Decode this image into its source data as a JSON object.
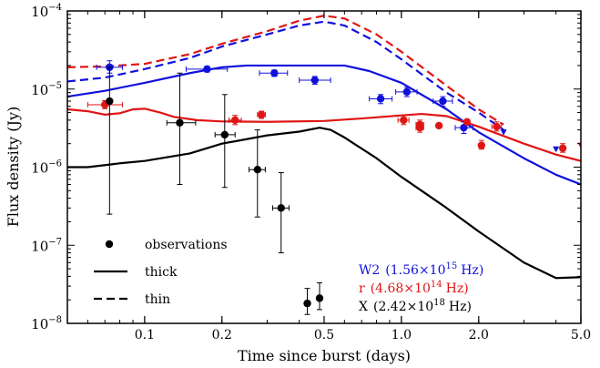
{
  "chart_data": {
    "type": "scatter",
    "title": "",
    "xlabel": "Time since burst (days)",
    "ylabel": "Flux density (Jy)",
    "xscale": "log",
    "yscale": "log",
    "xlim": [
      0.05,
      5.0
    ],
    "ylim": [
      1e-08,
      0.0001
    ],
    "x_ticks": [
      {
        "value": 0.1,
        "label": "0.1"
      },
      {
        "value": 0.2,
        "label": "0.2"
      },
      {
        "value": 0.5,
        "label": "0.5"
      },
      {
        "value": 1.0,
        "label": "1.0"
      },
      {
        "value": 2.0,
        "label": "2.0"
      },
      {
        "value": 5.0,
        "label": "5.0"
      }
    ],
    "y_ticks": [
      {
        "value": 1e-08,
        "base": "10",
        "exp": "−8"
      },
      {
        "value": 1e-07,
        "base": "10",
        "exp": "−7"
      },
      {
        "value": 1e-06,
        "base": "10",
        "exp": "−6"
      },
      {
        "value": 1e-05,
        "base": "10",
        "exp": "−5"
      },
      {
        "value": 0.0001,
        "base": "10",
        "exp": "−4"
      }
    ],
    "legend": {
      "placement": "lower-left",
      "entries": [
        {
          "label": "observations",
          "style": "marker"
        },
        {
          "label": "thick",
          "style": "solid"
        },
        {
          "label": "thin",
          "style": "dashed"
        }
      ]
    },
    "band_labels": [
      {
        "band": "W2",
        "freq_mant": "1.56",
        "freq_exp": "15",
        "unit": "Hz",
        "color": "#1010dd"
      },
      {
        "band": "r",
        "freq_mant": "4.68",
        "freq_exp": "14",
        "unit": "Hz",
        "color": "#e01515"
      },
      {
        "band": "X",
        "freq_mant": "2.42",
        "freq_exp": "18",
        "unit": "Hz",
        "color": "#000000"
      }
    ],
    "series": [
      {
        "band": "W2",
        "color": "#1010dd",
        "points": [
          {
            "x": 0.073,
            "y": 1.9e-05,
            "xerr": [
              0.065,
              0.082
            ],
            "yerr": [
              1.6e-05,
              2.3e-05
            ]
          },
          {
            "x": 0.175,
            "y": 1.8e-05,
            "xerr": [
              0.145,
              0.21
            ],
            "yerr": [
              1.65e-05,
              1.95e-05
            ]
          },
          {
            "x": 0.32,
            "y": 1.6e-05,
            "xerr": [
              0.28,
              0.36
            ],
            "yerr": [
              1.45e-05,
              1.75e-05
            ]
          },
          {
            "x": 0.46,
            "y": 1.3e-05,
            "xerr": [
              0.4,
              0.53
            ],
            "yerr": [
              1.15e-05,
              1.45e-05
            ]
          },
          {
            "x": 0.83,
            "y": 7.5e-06,
            "xerr": [
              0.75,
              0.92
            ],
            "yerr": [
              6.5e-06,
              8.5e-06
            ]
          },
          {
            "x": 1.05,
            "y": 9.2e-06,
            "xerr": [
              0.95,
              1.15
            ],
            "yerr": [
              8e-06,
              1.05e-05
            ]
          },
          {
            "x": 1.45,
            "y": 7e-06,
            "xerr": [
              1.33,
              1.58
            ],
            "yerr": [
              6e-06,
              8e-06
            ]
          },
          {
            "x": 1.75,
            "y": 3.2e-06,
            "xerr": [
              1.62,
              1.9
            ],
            "yerr": [
              2.7e-06,
              3.8e-06
            ]
          }
        ],
        "upper_limits": [
          {
            "x": 2.5,
            "y": 2.8e-06
          },
          {
            "x": 4.0,
            "y": 1.7e-06
          }
        ],
        "model_thick": [
          {
            "x": 0.05,
            "y": 8e-06
          },
          {
            "x": 0.07,
            "y": 9.5e-06
          },
          {
            "x": 0.1,
            "y": 1.2e-05
          },
          {
            "x": 0.15,
            "y": 1.6e-05
          },
          {
            "x": 0.2,
            "y": 1.9e-05
          },
          {
            "x": 0.25,
            "y": 2e-05
          },
          {
            "x": 0.4,
            "y": 2e-05
          },
          {
            "x": 0.6,
            "y": 2e-05
          },
          {
            "x": 0.75,
            "y": 1.7e-05
          },
          {
            "x": 1.0,
            "y": 1.2e-05
          },
          {
            "x": 1.5,
            "y": 5.5e-06
          },
          {
            "x": 2.0,
            "y": 2.8e-06
          },
          {
            "x": 3.0,
            "y": 1.3e-06
          },
          {
            "x": 4.0,
            "y": 8e-07
          },
          {
            "x": 5.0,
            "y": 6e-07
          }
        ],
        "model_thin": [
          {
            "x": 0.05,
            "y": 1.25e-05
          },
          {
            "x": 0.07,
            "y": 1.4e-05
          },
          {
            "x": 0.1,
            "y": 1.8e-05
          },
          {
            "x": 0.15,
            "y": 2.5e-05
          },
          {
            "x": 0.2,
            "y": 3.5e-05
          },
          {
            "x": 0.3,
            "y": 5e-05
          },
          {
            "x": 0.4,
            "y": 6.5e-05
          },
          {
            "x": 0.5,
            "y": 7.3e-05
          },
          {
            "x": 0.6,
            "y": 6.5e-05
          },
          {
            "x": 0.8,
            "y": 4e-05
          },
          {
            "x": 1.0,
            "y": 2.4e-05
          },
          {
            "x": 1.5,
            "y": 9e-06
          },
          {
            "x": 2.0,
            "y": 5e-06
          },
          {
            "x": 2.5,
            "y": 3e-06
          }
        ]
      },
      {
        "band": "r",
        "color": "#e01515",
        "points": [
          {
            "x": 0.07,
            "y": 6.3e-06,
            "xerr": [
              0.06,
              0.082
            ],
            "yerr": [
              5.6e-06,
              7.1e-06
            ]
          },
          {
            "x": 0.225,
            "y": 4e-06,
            "xerr": [
              0.213,
              0.238
            ],
            "yerr": [
              3.5e-06,
              4.6e-06
            ]
          },
          {
            "x": 0.285,
            "y": 4.7e-06,
            "xerr": [
              0.275,
              0.295
            ],
            "yerr": [
              4.2e-06,
              5.2e-06
            ]
          },
          {
            "x": 1.02,
            "y": 4e-06,
            "xerr": [
              0.97,
              1.07
            ],
            "yerr": [
              3.5e-06,
              4.6e-06
            ]
          },
          {
            "x": 1.18,
            "y": 3.5e-06,
            "xerr": [
              1.14,
              1.22
            ],
            "yerr": [
              3e-06,
              4e-06
            ]
          },
          {
            "x": 1.18,
            "y": 3.2e-06,
            "xerr": [
              1.14,
              1.22
            ],
            "yerr": [
              2.8e-06,
              3.7e-06
            ]
          },
          {
            "x": 1.4,
            "y": 3.4e-06
          },
          {
            "x": 1.8,
            "y": 3.8e-06
          },
          {
            "x": 2.05,
            "y": 1.9e-06,
            "yerr": [
              1.7e-06,
              2.2e-06
            ]
          },
          {
            "x": 2.35,
            "y": 3.3e-06,
            "xerr": [
              2.25,
              2.45
            ],
            "yerr": [
              2.9e-06,
              3.8e-06
            ]
          },
          {
            "x": 4.25,
            "y": 1.75e-06,
            "yerr": [
              1.55e-06,
              2e-06
            ]
          }
        ],
        "upper_limits": [
          {
            "x": 5.0,
            "y": 1.9e-06
          }
        ],
        "model_thick": [
          {
            "x": 0.05,
            "y": 5.5e-06
          },
          {
            "x": 0.06,
            "y": 5.2e-06
          },
          {
            "x": 0.07,
            "y": 4.7e-06
          },
          {
            "x": 0.08,
            "y": 4.9e-06
          },
          {
            "x": 0.09,
            "y": 5.5e-06
          },
          {
            "x": 0.1,
            "y": 5.6e-06
          },
          {
            "x": 0.115,
            "y": 5e-06
          },
          {
            "x": 0.13,
            "y": 4.4e-06
          },
          {
            "x": 0.16,
            "y": 4e-06
          },
          {
            "x": 0.2,
            "y": 3.85e-06
          },
          {
            "x": 0.3,
            "y": 3.8e-06
          },
          {
            "x": 0.5,
            "y": 3.9e-06
          },
          {
            "x": 0.7,
            "y": 4.2e-06
          },
          {
            "x": 1.0,
            "y": 4.6e-06
          },
          {
            "x": 1.2,
            "y": 4.8e-06
          },
          {
            "x": 1.5,
            "y": 4.5e-06
          },
          {
            "x": 2.0,
            "y": 3.3e-06
          },
          {
            "x": 3.0,
            "y": 2e-06
          },
          {
            "x": 4.0,
            "y": 1.45e-06
          },
          {
            "x": 5.0,
            "y": 1.2e-06
          }
        ],
        "model_thin": [
          {
            "x": 0.05,
            "y": 1.9e-05
          },
          {
            "x": 0.07,
            "y": 1.95e-05
          },
          {
            "x": 0.1,
            "y": 2.1e-05
          },
          {
            "x": 0.15,
            "y": 2.8e-05
          },
          {
            "x": 0.2,
            "y": 3.8e-05
          },
          {
            "x": 0.3,
            "y": 5.5e-05
          },
          {
            "x": 0.4,
            "y": 7.5e-05
          },
          {
            "x": 0.5,
            "y": 8.7e-05
          },
          {
            "x": 0.6,
            "y": 8e-05
          },
          {
            "x": 0.8,
            "y": 5e-05
          },
          {
            "x": 1.0,
            "y": 3e-05
          },
          {
            "x": 1.5,
            "y": 1.1e-05
          },
          {
            "x": 2.0,
            "y": 5.5e-06
          },
          {
            "x": 2.5,
            "y": 3.5e-06
          }
        ]
      },
      {
        "band": "X",
        "color": "#000000",
        "points": [
          {
            "x": 0.073,
            "y": 7e-06,
            "yerr": [
              2.5e-07,
              1.9e-05
            ]
          },
          {
            "x": 0.137,
            "y": 3.7e-06,
            "xerr": [
              0.122,
              0.158
            ],
            "yerr": [
              6e-07,
              1.6e-05
            ]
          },
          {
            "x": 0.205,
            "y": 2.6e-06,
            "xerr": [
              0.188,
              0.225
            ],
            "yerr": [
              5.5e-07,
              8.5e-06
            ]
          },
          {
            "x": 0.275,
            "y": 9.3e-07,
            "xerr": [
              0.255,
              0.295
            ],
            "yerr": [
              2.3e-07,
              3e-06
            ]
          },
          {
            "x": 0.34,
            "y": 3e-07,
            "xerr": [
              0.315,
              0.365
            ],
            "yerr": [
              8e-08,
              8.5e-07
            ]
          },
          {
            "x": 0.43,
            "y": 1.8e-08,
            "yerr": [
              1.3e-08,
              2.8e-08
            ]
          },
          {
            "x": 0.48,
            "y": 2.1e-08,
            "yerr": [
              1.5e-08,
              3.3e-08
            ]
          }
        ],
        "upper_limits": [],
        "model_thick": [
          {
            "x": 0.05,
            "y": 1e-06
          },
          {
            "x": 0.06,
            "y": 1e-06
          },
          {
            "x": 0.08,
            "y": 1.12e-06
          },
          {
            "x": 0.1,
            "y": 1.2e-06
          },
          {
            "x": 0.15,
            "y": 1.5e-06
          },
          {
            "x": 0.2,
            "y": 2e-06
          },
          {
            "x": 0.3,
            "y": 2.55e-06
          },
          {
            "x": 0.4,
            "y": 2.85e-06
          },
          {
            "x": 0.48,
            "y": 3.2e-06
          },
          {
            "x": 0.53,
            "y": 3e-06
          },
          {
            "x": 0.6,
            "y": 2.4e-06
          },
          {
            "x": 0.8,
            "y": 1.3e-06
          },
          {
            "x": 1.0,
            "y": 7.5e-07
          },
          {
            "x": 1.5,
            "y": 3e-07
          },
          {
            "x": 2.0,
            "y": 1.5e-07
          },
          {
            "x": 3.0,
            "y": 6e-08
          },
          {
            "x": 4.0,
            "y": 3.8e-08
          },
          {
            "x": 5.0,
            "y": 3.9e-08
          }
        ],
        "model_thin": []
      }
    ]
  }
}
